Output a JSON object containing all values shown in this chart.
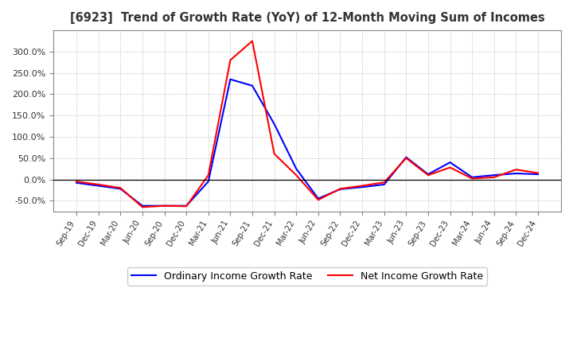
{
  "title": "[6923]  Trend of Growth Rate (YoY) of 12-Month Moving Sum of Incomes",
  "x_labels": [
    "Sep-19",
    "Dec-19",
    "Mar-20",
    "Jun-20",
    "Sep-20",
    "Dec-20",
    "Mar-21",
    "Jun-21",
    "Sep-21",
    "Dec-21",
    "Mar-22",
    "Jun-22",
    "Sep-22",
    "Dec-22",
    "Mar-23",
    "Jun-23",
    "Sep-23",
    "Dec-23",
    "Mar-24",
    "Jun-24",
    "Sep-24",
    "Dec-24"
  ],
  "ordinary_income": [
    -0.08,
    -0.15,
    -0.22,
    -0.62,
    -0.62,
    -0.62,
    -0.05,
    2.35,
    2.2,
    1.3,
    0.25,
    -0.45,
    -0.23,
    -0.18,
    -0.12,
    0.52,
    0.12,
    0.4,
    0.05,
    0.1,
    0.14,
    0.12
  ],
  "net_income": [
    -0.05,
    -0.12,
    -0.2,
    -0.65,
    -0.62,
    -0.63,
    0.1,
    2.8,
    3.25,
    0.6,
    0.1,
    -0.48,
    -0.22,
    -0.15,
    -0.07,
    0.5,
    0.1,
    0.28,
    0.02,
    0.05,
    0.23,
    0.15
  ],
  "ordinary_color": "#0000ff",
  "net_color": "#ff0000",
  "background_color": "#ffffff",
  "plot_bg_color": "#ffffff",
  "grid_color": "#aaaaaa",
  "y_ticks": [
    -0.5,
    0.0,
    0.5,
    1.0,
    1.5,
    2.0,
    2.5,
    3.0
  ],
  "ylim_min": -0.75,
  "ylim_max": 3.5,
  "legend_labels": [
    "Ordinary Income Growth Rate",
    "Net Income Growth Rate"
  ]
}
